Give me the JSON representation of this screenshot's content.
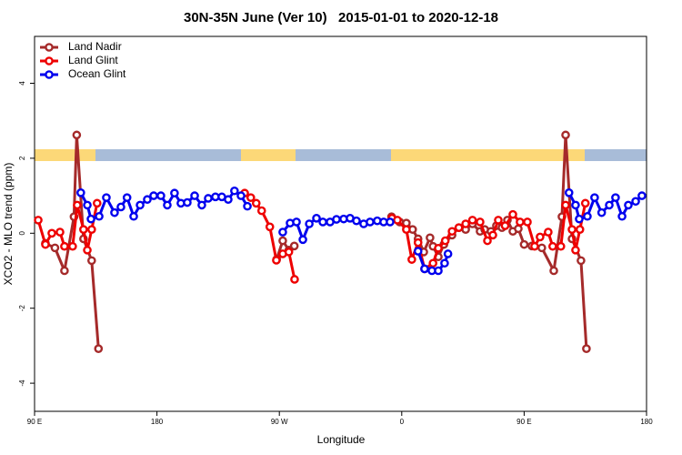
{
  "chart_data": {
    "type": "line",
    "title": "30N-35N June (Ver 10)   2015-01-01 to 2020-12-18",
    "x_label": "Longitude",
    "y_label": "XCO2 - MLO trend (ppm)",
    "xlim": [
      90,
      540
    ],
    "ylim": [
      -4.75,
      5.25
    ],
    "xticks": [
      {
        "value": 90,
        "label": "90 E"
      },
      180,
      {
        "value": 270,
        "label": "90 W"
      },
      {
        "value": 360,
        "label": "0"
      },
      {
        "value": 450,
        "label": "90 E"
      },
      180
    ],
    "yticks": [
      -4,
      -2,
      0,
      2,
      4
    ],
    "legend": "top-left",
    "series": [
      {
        "name": "Land Nadir",
        "color": "#a52a2a",
        "x": [
          98,
          105,
          112,
          119,
          121,
          126,
          132,
          137,
          null,
          268,
          272.5,
          277,
          281,
          null,
          352.5,
          358.5,
          363.4,
          368,
          372,
          376.2,
          380.8,
          383,
          386.9,
          391,
          397,
          402,
          407,
          412,
          417.6,
          421,
          425.6,
          429.6,
          433.7,
          437.7,
          441.7,
          445.7,
          450,
          455.7,
          463,
          471.8,
          477.8,
          480.5,
          485.2,
          491.8,
          495.8
        ],
        "values": [
          -0.27,
          -0.39,
          -1.0,
          0.44,
          2.62,
          -0.15,
          -0.73,
          -3.08,
          null,
          -0.7,
          -0.2,
          -0.45,
          -0.34,
          null,
          0.44,
          0.3,
          0.27,
          0.1,
          -0.15,
          -0.5,
          -0.12,
          -0.35,
          -0.63,
          -0.3,
          -0.05,
          0.15,
          0.1,
          0.25,
          0.05,
          0.1,
          0.05,
          0.2,
          0.15,
          0.35,
          0.05,
          0.12,
          -0.3,
          -0.34,
          -0.39,
          -1.0,
          0.44,
          2.62,
          -0.15,
          -0.73,
          -3.08
        ]
      },
      {
        "name": "Land Glint",
        "color": "#ee0000",
        "x": [
          92.7,
          98,
          102.7,
          108.7,
          112,
          118,
          121.4,
          126,
          128.8,
          132,
          136,
          null,
          244.5,
          249,
          253,
          257,
          263,
          267.8,
          272.5,
          277,
          281.2,
          null,
          352.8,
          356.8,
          363.4,
          367.4,
          372,
          376.8,
          383,
          386.9,
          392,
          397,
          402,
          407,
          412,
          417.6,
          423,
          427,
          431,
          436,
          441.7,
          447,
          452.4,
          457.7,
          461.7,
          467.7,
          471,
          477,
          480.5,
          485.2,
          487.8,
          491,
          495
        ],
        "values": [
          0.35,
          -0.3,
          0.0,
          0.03,
          -0.35,
          -0.35,
          0.75,
          0.1,
          -0.45,
          0.1,
          0.8,
          null,
          1.07,
          0.95,
          0.8,
          0.6,
          0.17,
          -0.72,
          -0.55,
          -0.5,
          -1.23,
          null,
          0.4,
          0.35,
          0.1,
          -0.7,
          -0.25,
          -0.95,
          -0.8,
          -0.4,
          -0.2,
          0.05,
          0.15,
          0.25,
          0.35,
          0.3,
          -0.2,
          -0.05,
          0.35,
          0.2,
          0.5,
          0.3,
          0.3,
          -0.35,
          -0.1,
          0.03,
          -0.35,
          -0.35,
          0.75,
          0.1,
          -0.45,
          0.1,
          0.8
        ]
      },
      {
        "name": "Ocean Glint",
        "color": "#0000ee",
        "x": [
          124,
          128.8,
          131.5,
          137.5,
          142.8,
          148.8,
          153.5,
          158,
          162.9,
          167.6,
          172.9,
          177.6,
          182.9,
          187.6,
          192.9,
          197.6,
          202.3,
          207.7,
          213,
          217.7,
          223,
          227.7,
          232.4,
          237,
          241.8,
          246.5,
          null,
          272.5,
          277.9,
          282.6,
          287.3,
          292,
          297.3,
          302,
          307.3,
          312,
          317.3,
          322,
          326.7,
          332,
          336.7,
          342,
          346.7,
          351.4,
          null,
          372,
          376.8,
          382.2,
          386.9,
          391.5,
          394,
          null,
          483,
          487.8,
          490.5,
          496.5,
          501.8,
          507,
          512.6,
          517.2,
          522,
          526.6,
          532,
          536.6
        ],
        "values": [
          1.08,
          0.75,
          0.38,
          0.45,
          0.95,
          0.55,
          0.7,
          0.95,
          0.45,
          0.75,
          0.9,
          1.0,
          1.0,
          0.75,
          1.07,
          0.8,
          0.82,
          1.0,
          0.75,
          0.93,
          0.97,
          0.97,
          0.9,
          1.13,
          1.0,
          0.72,
          null,
          0.03,
          0.27,
          0.3,
          -0.17,
          0.25,
          0.4,
          0.3,
          0.3,
          0.37,
          0.38,
          0.4,
          0.33,
          0.25,
          0.3,
          0.33,
          0.3,
          0.3,
          null,
          -0.48,
          -0.95,
          -1.0,
          -1.0,
          -0.8,
          -0.55,
          null,
          1.08,
          0.75,
          0.38,
          0.45,
          0.95,
          0.55,
          0.75,
          0.95,
          0.45,
          0.75,
          0.85,
          1.0
        ]
      }
    ]
  }
}
